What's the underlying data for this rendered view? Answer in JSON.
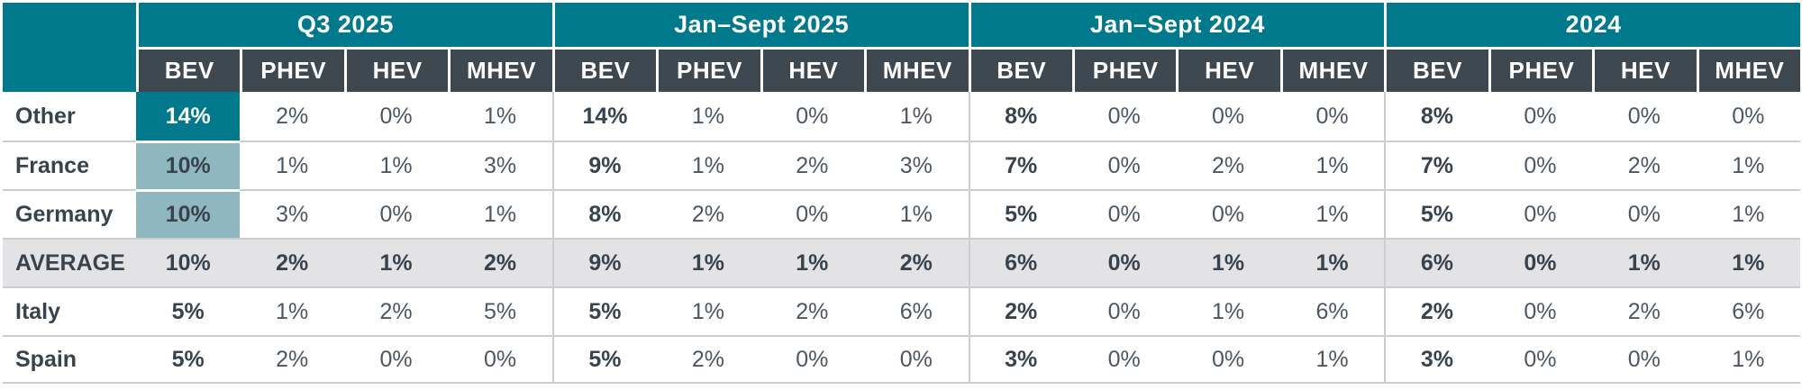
{
  "colors": {
    "teal": "#00798C",
    "dark_header": "#3E4851",
    "muted_teal": "#8FB7BF",
    "average_row_bg": "#E3E3E5",
    "grid_line": "#CCCDD1",
    "text_dark": "#39434D",
    "text_value": "#4D5761",
    "background": "#FFFFFF"
  },
  "chart_data": {
    "type": "table",
    "unit": "%",
    "column_groups": [
      {
        "label": "Q3 2025",
        "sub_columns": [
          "BEV",
          "PHEV",
          "HEV",
          "MHEV"
        ]
      },
      {
        "label": "Jan–Sept 2025",
        "sub_columns": [
          "BEV",
          "PHEV",
          "HEV",
          "MHEV"
        ]
      },
      {
        "label": "Jan–Sept 2024",
        "sub_columns": [
          "BEV",
          "PHEV",
          "HEV",
          "MHEV"
        ]
      },
      {
        "label": "2024",
        "sub_columns": [
          "BEV",
          "PHEV",
          "HEV",
          "MHEV"
        ]
      }
    ],
    "rows": [
      {
        "label": "Other",
        "emphasis": false,
        "values": [
          [
            14,
            2,
            0,
            1
          ],
          [
            14,
            1,
            0,
            1
          ],
          [
            8,
            0,
            0,
            0
          ],
          [
            8,
            0,
            0,
            0
          ]
        ],
        "highlight": {
          "group": 0,
          "col": 0,
          "style": "solid-teal"
        }
      },
      {
        "label": "France",
        "emphasis": false,
        "values": [
          [
            10,
            1,
            1,
            3
          ],
          [
            9,
            1,
            2,
            3
          ],
          [
            7,
            0,
            2,
            1
          ],
          [
            7,
            0,
            2,
            1
          ]
        ],
        "highlight": {
          "group": 0,
          "col": 0,
          "style": "muted-teal"
        }
      },
      {
        "label": "Germany",
        "emphasis": false,
        "values": [
          [
            10,
            3,
            0,
            1
          ],
          [
            8,
            2,
            0,
            1
          ],
          [
            5,
            0,
            0,
            1
          ],
          [
            5,
            0,
            0,
            1
          ]
        ],
        "highlight": {
          "group": 0,
          "col": 0,
          "style": "muted-teal"
        }
      },
      {
        "label": "AVERAGE",
        "emphasis": true,
        "values": [
          [
            10,
            2,
            1,
            2
          ],
          [
            9,
            1,
            1,
            2
          ],
          [
            6,
            0,
            1,
            1
          ],
          [
            6,
            0,
            1,
            1
          ]
        ],
        "highlight": null
      },
      {
        "label": "Italy",
        "emphasis": false,
        "values": [
          [
            5,
            1,
            2,
            5
          ],
          [
            5,
            1,
            2,
            6
          ],
          [
            2,
            0,
            1,
            6
          ],
          [
            2,
            0,
            2,
            6
          ]
        ],
        "highlight": null
      },
      {
        "label": "Spain",
        "emphasis": false,
        "values": [
          [
            5,
            2,
            0,
            0
          ],
          [
            5,
            2,
            0,
            0
          ],
          [
            3,
            0,
            0,
            1
          ],
          [
            3,
            0,
            0,
            1
          ]
        ],
        "highlight": null
      }
    ]
  }
}
